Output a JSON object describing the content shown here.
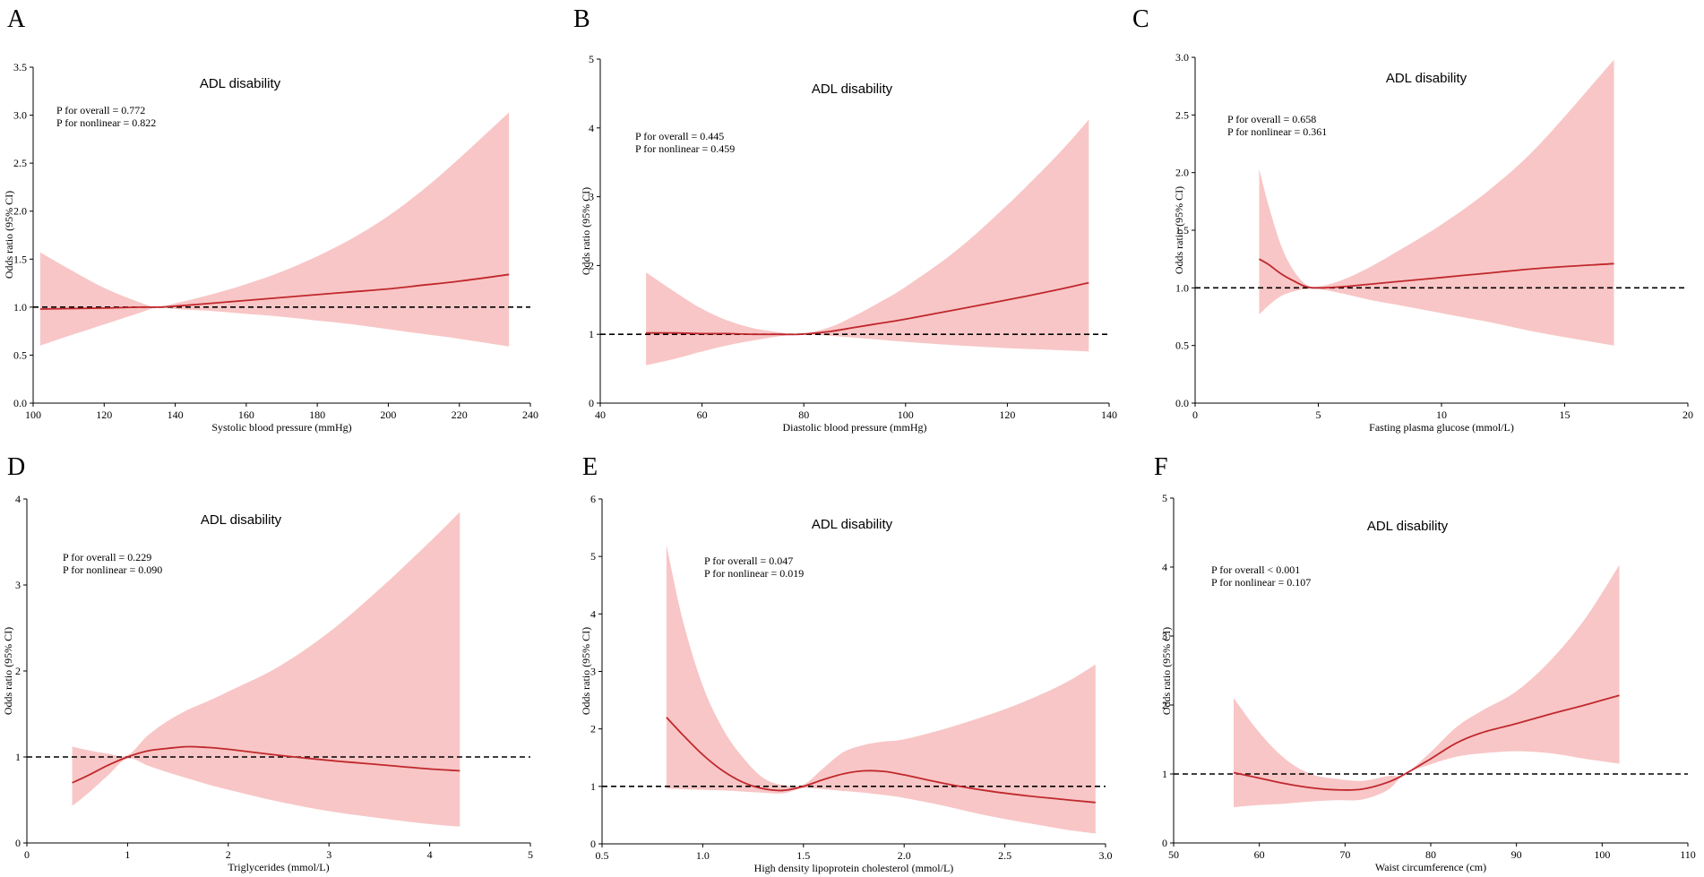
{
  "figure": {
    "ci_fill": "#f8c6c6",
    "line_color": "#c0282d",
    "ref_line_color": "#000000"
  },
  "chart_data": [
    {
      "type": "line",
      "panel": "A",
      "title": "ADL disability",
      "annotations": [
        "P for overall = 0.772",
        "P for nonlinear = 0.822"
      ],
      "xlabel": "Systolic blood pressure (mmHg)",
      "ylabel": "Odds ratio (95% CI)",
      "xlim": [
        100,
        240
      ],
      "ylim": [
        0,
        3.5
      ],
      "xticks": [
        100,
        120,
        140,
        160,
        180,
        200,
        220,
        240
      ],
      "xtick_labels": [
        "100",
        "120",
        "140",
        "160",
        "180",
        "200",
        "220",
        "240"
      ],
      "yticks": [
        0,
        0.5,
        1,
        1.5,
        2,
        2.5,
        3,
        3.5
      ],
      "ytick_labels": [
        "0.0",
        "0.5",
        "1.0",
        "1.5",
        "2.0",
        "2.5",
        "3.0",
        "3.5"
      ],
      "reference": 1,
      "x": [
        102,
        110,
        120,
        130,
        135,
        140,
        150,
        160,
        170,
        180,
        190,
        200,
        210,
        220,
        234
      ],
      "y": [
        0.98,
        0.985,
        0.99,
        1.0,
        1.0,
        1.01,
        1.04,
        1.07,
        1.1,
        1.13,
        1.16,
        1.19,
        1.23,
        1.27,
        1.34
      ],
      "lower": [
        0.6,
        0.7,
        0.82,
        0.94,
        1.0,
        0.98,
        0.96,
        0.93,
        0.9,
        0.86,
        0.82,
        0.77,
        0.72,
        0.67,
        0.59
      ],
      "upper": [
        1.57,
        1.4,
        1.2,
        1.05,
        1.0,
        1.04,
        1.13,
        1.24,
        1.37,
        1.53,
        1.72,
        1.95,
        2.23,
        2.55,
        3.03
      ]
    },
    {
      "type": "line",
      "panel": "B",
      "title": "ADL disability",
      "annotations": [
        "P for overall = 0.445",
        "P for nonlinear = 0.459"
      ],
      "xlabel": "Diastolic blood pressure (mmHg)",
      "ylabel": "Odds ratio (95% CI)",
      "xlim": [
        40,
        140
      ],
      "ylim": [
        0,
        5
      ],
      "xticks": [
        40,
        60,
        80,
        100,
        120,
        140
      ],
      "xtick_labels": [
        "40",
        "60",
        "80",
        "100",
        "120",
        "140"
      ],
      "yticks": [
        0,
        1,
        2,
        3,
        4,
        5
      ],
      "ytick_labels": [
        "0",
        "1",
        "2",
        "3",
        "4",
        "5"
      ],
      "reference": 1,
      "x": [
        49,
        55,
        60,
        65,
        70,
        75,
        79,
        85,
        90,
        95,
        100,
        110,
        120,
        130,
        136
      ],
      "y": [
        1.02,
        1.02,
        1.01,
        1.01,
        1.0,
        1.0,
        1.0,
        1.04,
        1.1,
        1.16,
        1.22,
        1.36,
        1.5,
        1.65,
        1.75
      ],
      "lower": [
        0.55,
        0.65,
        0.75,
        0.84,
        0.91,
        0.97,
        1.0,
        0.98,
        0.95,
        0.92,
        0.89,
        0.84,
        0.8,
        0.77,
        0.75
      ],
      "upper": [
        1.9,
        1.6,
        1.37,
        1.2,
        1.09,
        1.03,
        1.0,
        1.1,
        1.27,
        1.47,
        1.69,
        2.22,
        2.88,
        3.62,
        4.12
      ]
    },
    {
      "type": "line",
      "panel": "C",
      "title": "ADL disability",
      "annotations": [
        "P for overall = 0.658",
        "P for nonlinear = 0.361"
      ],
      "xlabel": "Fasting plasma glucose (mmol/L)",
      "ylabel": "Odds ratio (95% CI)",
      "xlim": [
        0,
        20
      ],
      "ylim": [
        0,
        3
      ],
      "xticks": [
        0,
        5,
        10,
        15,
        20
      ],
      "xtick_labels": [
        "0",
        "5",
        "10",
        "15",
        "20"
      ],
      "yticks": [
        0,
        0.5,
        1,
        1.5,
        2,
        2.5,
        3
      ],
      "ytick_labels": [
        "0.0",
        "0.5",
        "1.0",
        "1.5",
        "2.0",
        "2.5",
        "3.0"
      ],
      "reference": 1,
      "x": [
        2.6,
        3.0,
        3.5,
        4.0,
        4.5,
        5.0,
        6.0,
        7.0,
        8.0,
        10.0,
        12.0,
        14.0,
        17.0
      ],
      "y": [
        1.25,
        1.2,
        1.12,
        1.06,
        1.01,
        1.0,
        1.01,
        1.03,
        1.05,
        1.09,
        1.13,
        1.17,
        1.21
      ],
      "lower": [
        0.77,
        0.85,
        0.93,
        0.97,
        0.99,
        0.99,
        0.95,
        0.9,
        0.86,
        0.78,
        0.7,
        0.61,
        0.5
      ],
      "upper": [
        2.03,
        1.7,
        1.36,
        1.15,
        1.03,
        1.01,
        1.07,
        1.17,
        1.29,
        1.55,
        1.86,
        2.25,
        2.98
      ]
    },
    {
      "type": "line",
      "panel": "D",
      "title": "ADL disability",
      "annotations": [
        "P for overall = 0.229",
        "P for nonlinear = 0.090"
      ],
      "xlabel": "Triglycerides (mmol/L)",
      "ylabel": "Odds ratio (95% CI)",
      "xlim": [
        0,
        5
      ],
      "ylim": [
        0,
        4
      ],
      "xticks": [
        0,
        1,
        2,
        3,
        4,
        5
      ],
      "xtick_labels": [
        "0",
        "1",
        "2",
        "3",
        "4",
        "5"
      ],
      "yticks": [
        0,
        1,
        2,
        3,
        4
      ],
      "ytick_labels": [
        "0",
        "1",
        "2",
        "3",
        "4"
      ],
      "reference": 1,
      "x": [
        0.45,
        0.6,
        0.8,
        1.0,
        1.2,
        1.4,
        1.6,
        1.8,
        2.0,
        2.5,
        3.0,
        3.5,
        4.0,
        4.3
      ],
      "y": [
        0.7,
        0.78,
        0.9,
        1.0,
        1.07,
        1.1,
        1.12,
        1.11,
        1.09,
        1.02,
        0.96,
        0.91,
        0.86,
        0.84
      ],
      "lower": [
        0.43,
        0.57,
        0.78,
        0.98,
        0.9,
        0.82,
        0.75,
        0.68,
        0.62,
        0.48,
        0.37,
        0.29,
        0.22,
        0.19
      ],
      "upper": [
        1.12,
        1.08,
        1.04,
        1.02,
        1.25,
        1.42,
        1.55,
        1.65,
        1.76,
        2.05,
        2.45,
        2.95,
        3.5,
        3.85
      ]
    },
    {
      "type": "line",
      "panel": "E",
      "title": "ADL disability",
      "annotations": [
        "P for overall = 0.047",
        "P for nonlinear = 0.019"
      ],
      "xlabel": "High density lipoprotein cholesterol (mmol/L)",
      "ylabel": "Odds ratio (95% CI)",
      "xlim": [
        0.5,
        3.0
      ],
      "ylim": [
        0,
        6
      ],
      "xticks": [
        0.5,
        1.0,
        1.5,
        2.0,
        2.5,
        3.0
      ],
      "xtick_labels": [
        "0.5",
        "1.0",
        "1.5",
        "2.0",
        "2.5",
        "3.0"
      ],
      "yticks": [
        0,
        1,
        2,
        3,
        4,
        5,
        6
      ],
      "ytick_labels": [
        "0",
        "1",
        "2",
        "3",
        "4",
        "5",
        "6"
      ],
      "reference": 1,
      "x": [
        0.82,
        0.9,
        1.0,
        1.1,
        1.2,
        1.3,
        1.4,
        1.5,
        1.6,
        1.7,
        1.8,
        1.9,
        2.0,
        2.2,
        2.4,
        2.6,
        2.8,
        2.95
      ],
      "y": [
        2.2,
        1.9,
        1.55,
        1.27,
        1.07,
        0.96,
        0.93,
        1.0,
        1.12,
        1.22,
        1.27,
        1.26,
        1.2,
        1.05,
        0.93,
        0.84,
        0.77,
        0.72
      ],
      "lower": [
        0.96,
        0.95,
        0.94,
        0.93,
        0.91,
        0.89,
        0.88,
        0.97,
        0.95,
        0.92,
        0.89,
        0.85,
        0.8,
        0.66,
        0.5,
        0.37,
        0.25,
        0.18
      ],
      "upper": [
        5.2,
        3.9,
        2.75,
        2.0,
        1.5,
        1.15,
        1.02,
        1.03,
        1.32,
        1.6,
        1.72,
        1.78,
        1.82,
        2.0,
        2.22,
        2.48,
        2.8,
        3.12
      ]
    },
    {
      "type": "line",
      "panel": "F",
      "title": "ADL disability",
      "annotations": [
        "P for overall < 0.001",
        "P for nonlinear = 0.107"
      ],
      "xlabel": "Waist circumference (cm)",
      "ylabel": "Odds ratio (95% CI)",
      "xlim": [
        50,
        110
      ],
      "ylim": [
        0,
        5
      ],
      "xticks": [
        50,
        60,
        70,
        80,
        90,
        100,
        110
      ],
      "xtick_labels": [
        "50",
        "60",
        "70",
        "80",
        "90",
        "100",
        "110"
      ],
      "yticks": [
        0,
        1,
        2,
        3,
        4,
        5
      ],
      "ytick_labels": [
        "0",
        "1",
        "2",
        "3",
        "4",
        "5"
      ],
      "reference": 1,
      "x": [
        57,
        60,
        63,
        66,
        69,
        72,
        75,
        77,
        80,
        83,
        86,
        90,
        94,
        98,
        102
      ],
      "y": [
        1.02,
        0.94,
        0.86,
        0.8,
        0.77,
        0.78,
        0.88,
        1.0,
        1.22,
        1.45,
        1.6,
        1.73,
        1.87,
        2.0,
        2.14
      ],
      "lower": [
        0.52,
        0.55,
        0.57,
        0.6,
        0.62,
        0.63,
        0.77,
        1.0,
        1.14,
        1.25,
        1.3,
        1.33,
        1.3,
        1.22,
        1.15
      ],
      "upper": [
        2.1,
        1.6,
        1.22,
        1.0,
        0.93,
        0.9,
        0.97,
        1.0,
        1.32,
        1.68,
        1.92,
        2.2,
        2.65,
        3.25,
        4.03
      ]
    }
  ]
}
